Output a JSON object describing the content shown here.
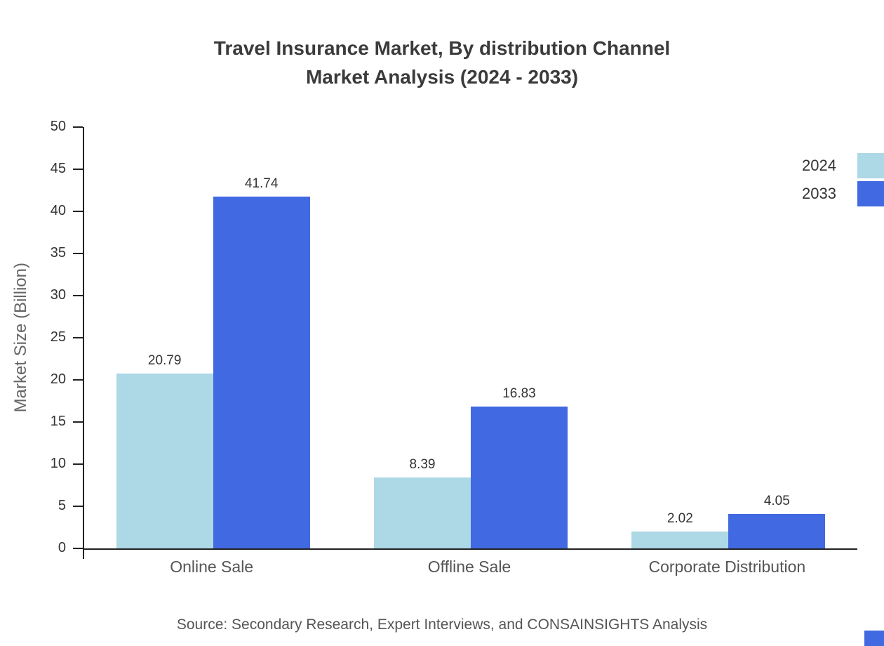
{
  "header": {
    "line1": "Travel Insurance Market, By distribution Channel",
    "line2": "Market Analysis (2024 - 2033)"
  },
  "footer": {
    "source": "Source: Secondary Research, Expert Interviews, and CONSAINSIGHTS Analysis"
  },
  "chart_data": {
    "type": "bar",
    "title": "Travel Insurance Market, By distribution Channel Market Analysis (2024 - 2033)",
    "categories": [
      "Online Sale",
      "Offline Sale",
      "Corporate Distribution"
    ],
    "series": [
      {
        "name": "2024",
        "color": "#add8e6",
        "values": [
          20.79,
          8.39,
          2.02
        ]
      },
      {
        "name": "2033",
        "color": "#4169e1",
        "values": [
          41.74,
          16.83,
          4.05
        ]
      }
    ],
    "xlabel": "",
    "ylabel": "Market Size (Billion)",
    "ylim": [
      0,
      50
    ],
    "ytick_step": 5,
    "grid": false,
    "legend_position": "top-right",
    "value_labels": true
  }
}
